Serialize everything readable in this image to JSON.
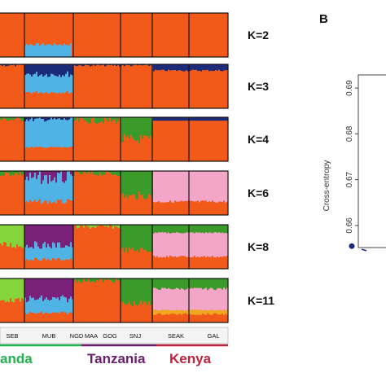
{
  "chart_data": [
    {
      "type": "stacked-bar",
      "description_kind": "admixture",
      "panels": [
        {
          "label": "K=2"
        },
        {
          "label": "K=3"
        },
        {
          "label": "K=4"
        },
        {
          "label": "K=6"
        },
        {
          "label": "K=8"
        },
        {
          "label": "K=11"
        }
      ],
      "populations": [
        {
          "label": "SEB",
          "color": "#2ea84a"
        },
        {
          "label": "MUB",
          "color": "#2ea84a"
        },
        {
          "label": "NGD",
          "color": "#2ea84a"
        },
        {
          "label": "MAA",
          "color": "#6a1f6e"
        },
        {
          "label": "GOG",
          "color": "#6a1f6e"
        },
        {
          "label": "SNJ",
          "color": "#6a1f6e"
        },
        {
          "label": "SEAK",
          "color": "#c0243a"
        },
        {
          "label": "GAL",
          "color": "#c0243a"
        }
      ],
      "countries": [
        {
          "label": "anda",
          "color": "#22b24c"
        },
        {
          "label": "Tanzania",
          "color": "#6a1f6e"
        },
        {
          "label": "Kenya",
          "color": "#c0243a"
        }
      ],
      "colors": {
        "orange": "#f25a1a",
        "blue": "#4fb3e6",
        "navy": "#1c2a7a",
        "green": "#3a9a2a",
        "pink": "#f3a6c8",
        "purple": "#7a1f7a",
        "lime": "#86d43c",
        "yellow": "#f0a820"
      }
    },
    {
      "type": "line",
      "panel_label": "B",
      "ylabel": "Cross-entropy",
      "yticks": [
        "0.66",
        "0.67",
        "0.68",
        "0.69"
      ],
      "ylim": [
        0.655,
        0.695
      ],
      "points": [
        {
          "y": 0.6555
        }
      ],
      "marker_color": "#1a2a7a"
    }
  ]
}
